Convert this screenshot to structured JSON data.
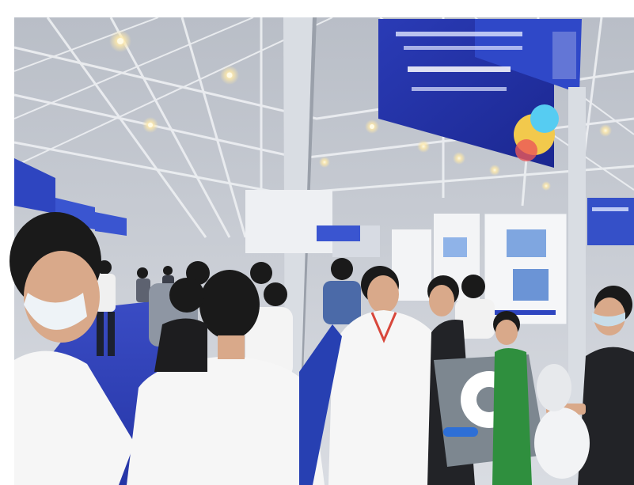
{
  "scene": {
    "subject": "trade-show-exhibition-hall-crowd",
    "colors": {
      "background": "#ffffff",
      "ceiling": "#c8ccd3",
      "truss": "#e8eaee",
      "banner_blue": "#2333a8",
      "carpet_blue": "#2d3fb8",
      "booth_white": "#eef0f3",
      "skin": "#d9a98a",
      "hair": "#1a1a1a"
    }
  }
}
